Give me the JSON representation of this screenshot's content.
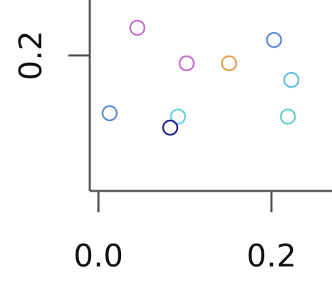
{
  "chart_data": {
    "type": "scatter",
    "title": "",
    "xlabel": "",
    "ylabel": "",
    "xlim": [
      -0.01,
      0.27
    ],
    "ylim": [
      0.078,
      0.25
    ],
    "x_ticks": [
      {
        "value": 0.0,
        "label": "0.0"
      },
      {
        "value": 0.2,
        "label": "0.2"
      }
    ],
    "y_ticks": [
      {
        "value": 0.2,
        "label": "0.2"
      }
    ],
    "marker": "open-circle",
    "grid": false,
    "legend": "none",
    "points": [
      {
        "x": 0.045,
        "y": 0.225,
        "color": "#c86fd3"
      },
      {
        "x": 0.102,
        "y": 0.193,
        "color": "#c86fd3"
      },
      {
        "x": 0.151,
        "y": 0.193,
        "color": "#e8a050"
      },
      {
        "x": 0.203,
        "y": 0.214,
        "color": "#5b8ed8"
      },
      {
        "x": 0.223,
        "y": 0.178,
        "color": "#66bce8"
      },
      {
        "x": 0.013,
        "y": 0.148,
        "color": "#5b8ed8"
      },
      {
        "x": 0.092,
        "y": 0.145,
        "color": "#66d2e0"
      },
      {
        "x": 0.083,
        "y": 0.135,
        "color": "#22228a"
      },
      {
        "x": 0.219,
        "y": 0.145,
        "color": "#66d2c8"
      }
    ]
  }
}
